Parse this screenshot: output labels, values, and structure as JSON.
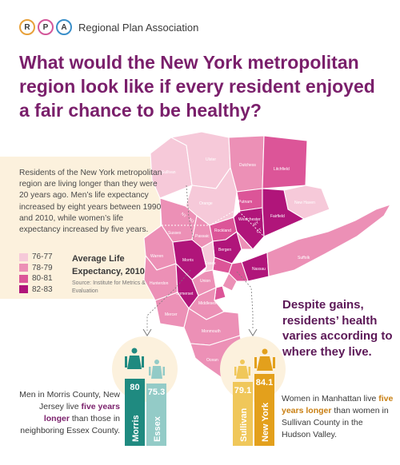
{
  "header": {
    "logo_letters": [
      "R",
      "P",
      "A"
    ],
    "logo_colors": [
      "#e8a13a",
      "#d3579a",
      "#3b8fc9"
    ],
    "org_name": "Regional Plan Association",
    "title": "What would the New York metropolitan region look like if every resident enjoyed a fair chance to be healthy?"
  },
  "intro": {
    "text": "Residents of the New York metropolitan region are living longer than they were 20 years ago. Men’s life expectancy increased by eight years between 1990 and 2010, while women’s life expectancy increased by five years."
  },
  "legend": {
    "title": "Average Life Expectancy, 2010",
    "source": "Source: Institute for Metrics & Evaluation",
    "items": [
      {
        "label": "76-77",
        "color": "#f6c9d9"
      },
      {
        "label": "78-79",
        "color": "#ec90b6"
      },
      {
        "label": "80-81",
        "color": "#dc5598"
      },
      {
        "label": "82-83",
        "color": "#b0157a"
      }
    ]
  },
  "map": {
    "counties": [
      "Sullivan",
      "Ulster",
      "Dutchess",
      "Litchfield",
      "Orange",
      "Putnam",
      "New Haven",
      "Sussex",
      "Passaic",
      "Rockland",
      "Westchester",
      "Fairfield",
      "Warren",
      "Morris",
      "Bergen",
      "Suffolk",
      "Hunterdon",
      "Somerset",
      "Union",
      "Essex",
      "Nassau",
      "Middlesex",
      "Mercer",
      "Monmouth",
      "Ocean"
    ],
    "state_labels": [
      "NY",
      "NJ",
      "NY",
      "CT"
    ]
  },
  "callout": {
    "text": "Despite gains, residents’ health varies according to where they live."
  },
  "comparison_left": {
    "bars": [
      {
        "name": "Morris",
        "value": "80",
        "color": "#1f8a80"
      },
      {
        "name": "Essex",
        "value": "75.3",
        "color": "#93cbc7"
      }
    ],
    "text_before": "Men in Morris County, New Jersey live",
    "highlight": "five years longer",
    "text_after": "than those in neighboring Essex County."
  },
  "comparison_right": {
    "bars": [
      {
        "name": "Sullivan",
        "value": "79.1",
        "color": "#f0c75a"
      },
      {
        "name": "New York",
        "value": "84.1",
        "color": "#e3a01c"
      }
    ],
    "text_before": "Women in Manhattan live",
    "highlight": "five years longer",
    "text_after": "than women in Sullivan County in the Hudson Valley."
  }
}
